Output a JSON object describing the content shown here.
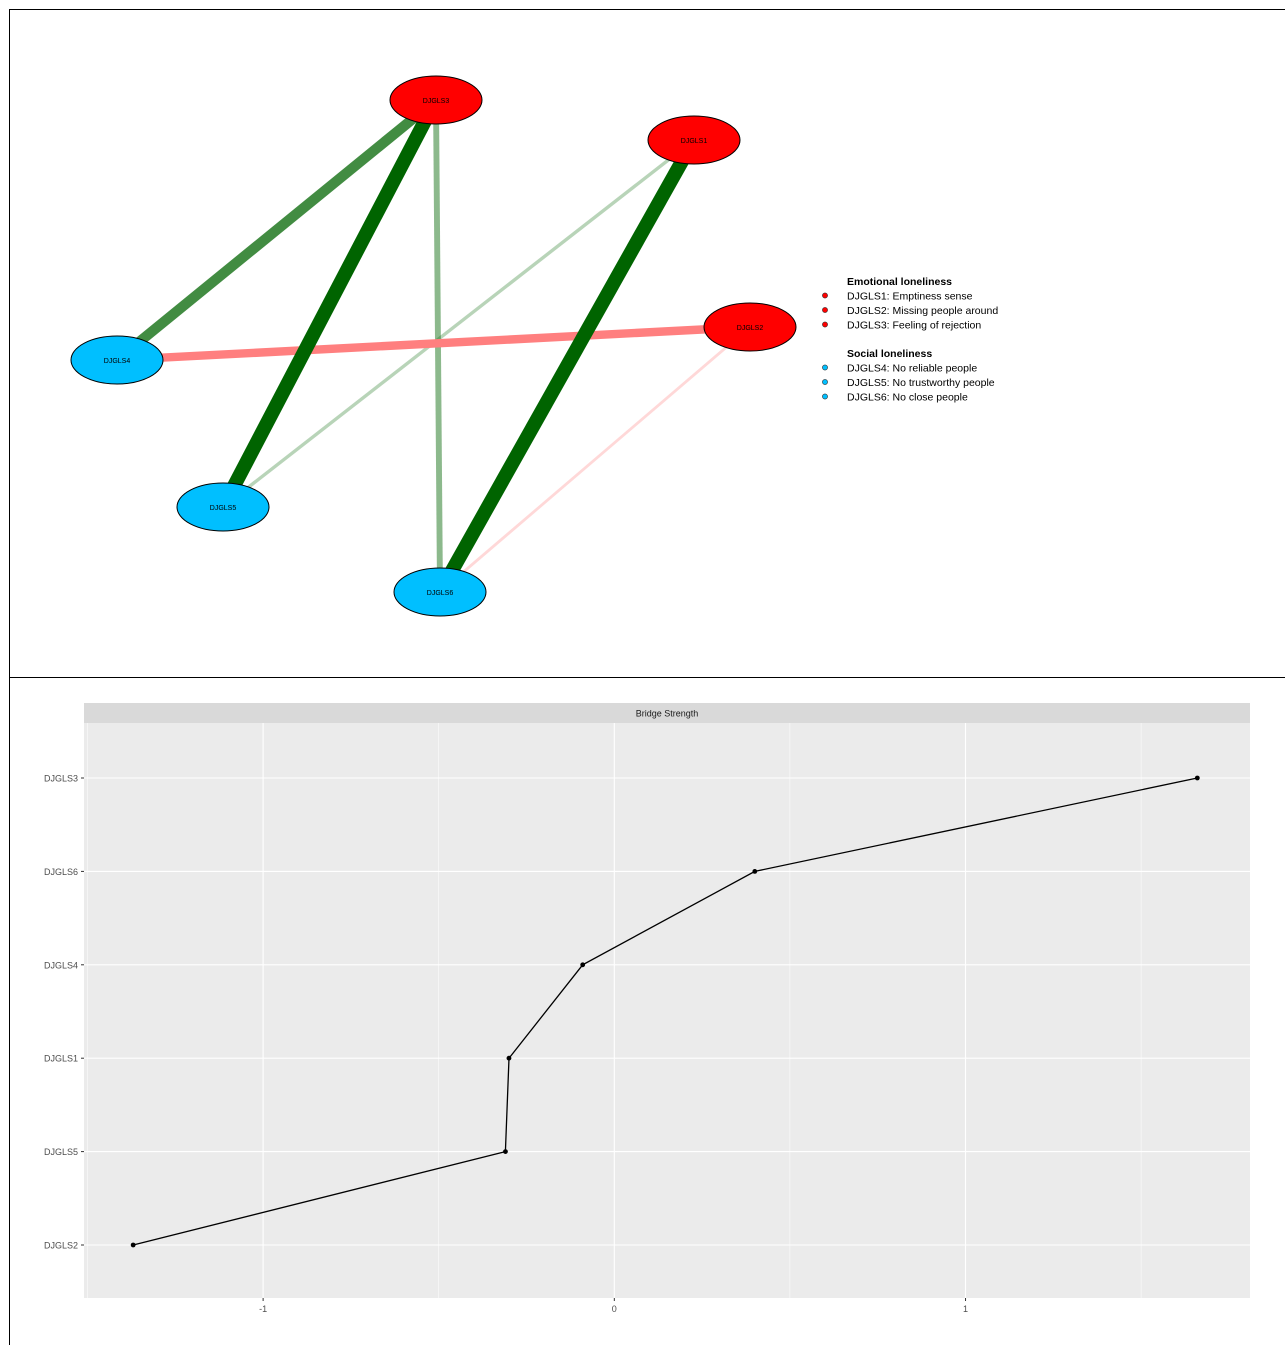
{
  "network": {
    "nodes": [
      {
        "id": "DJGLS1",
        "label": "DJGLS1",
        "group": "emotional"
      },
      {
        "id": "DJGLS2",
        "label": "DJGLS2",
        "group": "emotional"
      },
      {
        "id": "DJGLS3",
        "label": "DJGLS3",
        "group": "emotional"
      },
      {
        "id": "DJGLS4",
        "label": "DJGLS4",
        "group": "social"
      },
      {
        "id": "DJGLS5",
        "label": "DJGLS5",
        "group": "social"
      },
      {
        "id": "DJGLS6",
        "label": "DJGLS6",
        "group": "social"
      }
    ],
    "edges": [
      {
        "from": "DJGLS3",
        "to": "DJGLS5",
        "sign": "positive",
        "weight": 1.0
      },
      {
        "from": "DJGLS1",
        "to": "DJGLS6",
        "sign": "positive",
        "weight": 1.0
      },
      {
        "from": "DJGLS3",
        "to": "DJGLS4",
        "sign": "positive",
        "weight": 0.7
      },
      {
        "from": "DJGLS3",
        "to": "DJGLS6",
        "sign": "positive",
        "weight": 0.35
      },
      {
        "from": "DJGLS1",
        "to": "DJGLS5",
        "sign": "positive",
        "weight": 0.15
      },
      {
        "from": "DJGLS2",
        "to": "DJGLS4",
        "sign": "negative",
        "weight": 0.55
      },
      {
        "from": "DJGLS2",
        "to": "DJGLS6",
        "sign": "negative",
        "weight": 0.1
      }
    ],
    "legend": [
      {
        "title": "Emotional loneliness",
        "color": "#ff0000",
        "items": [
          "DJGLS1: Emptiness sense",
          "DJGLS2: Missing people around",
          "DJGLS3: Feeling of rejection"
        ]
      },
      {
        "title": "Social loneliness",
        "color": "#00bfff",
        "items": [
          "DJGLS4: No reliable people",
          "DJGLS5: No trustworthy people",
          "DJGLS6: No close people"
        ]
      }
    ],
    "colors": {
      "emotional": "#ff0000",
      "social": "#00bfff",
      "positive": "#006400",
      "negative": "#ff7f7f"
    }
  },
  "chart_data": {
    "type": "line",
    "title": "Bridge Strength",
    "categories": [
      "DJGLS2",
      "DJGLS5",
      "DJGLS1",
      "DJGLS4",
      "DJGLS6",
      "DJGLS3"
    ],
    "values": [
      -1.37,
      -0.31,
      -0.3,
      -0.09,
      0.4,
      1.66
    ],
    "x_ticks": [
      -1,
      0,
      1
    ],
    "x_tick_labels": [
      "-1",
      "0",
      "1"
    ],
    "xlim": [
      -1.51,
      1.81
    ],
    "grid": true,
    "xlabel": "",
    "ylabel": ""
  }
}
